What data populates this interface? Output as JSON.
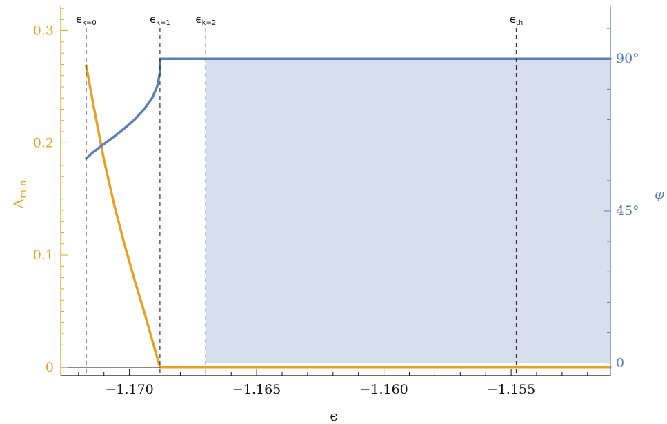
{
  "chart_data": {
    "type": "line",
    "xlabel": "ϵ",
    "ylabel_left": "Δmin",
    "ylabel_left_main": "Δ",
    "ylabel_left_sub": "min",
    "ylabel_right": "φ",
    "xlim": [
      -1.1727,
      -1.1511
    ],
    "ylim_left": [
      -0.0075,
      0.3225
    ],
    "ylim_right_degrees": [
      -3.75,
      105.75
    ],
    "x_ticks": [
      {
        "value": -1.17,
        "label": "−1.170"
      },
      {
        "value": -1.165,
        "label": "−1.165"
      },
      {
        "value": -1.16,
        "label": "−1.160"
      },
      {
        "value": -1.155,
        "label": "−1.155"
      }
    ],
    "left_ticks": [
      {
        "value": 0,
        "label": "0"
      },
      {
        "value": 0.1,
        "label": "0.1"
      },
      {
        "value": 0.2,
        "label": "0.2"
      },
      {
        "value": 0.3,
        "label": "0.3"
      }
    ],
    "right_ticks": [
      {
        "value": 0,
        "label": "0"
      },
      {
        "value": 45,
        "label": "45°"
      },
      {
        "value": 90,
        "label": "90°"
      }
    ],
    "vlines": [
      {
        "x": -1.1717,
        "label_main": "ϵ",
        "label_sub": "k=0"
      },
      {
        "x": -1.1688,
        "label_main": "ϵ",
        "label_sub": "k=1"
      },
      {
        "x": -1.167,
        "label_main": "ϵ",
        "label_sub": "k=2"
      },
      {
        "x": -1.1548,
        "label_main": "ϵ",
        "label_sub": "th"
      }
    ],
    "shaded_region": {
      "x_from": -1.167,
      "x_to": -1.1511,
      "phi_top": 90,
      "color": "#d7dfec"
    },
    "series": [
      {
        "axis": "left",
        "color": "#e8a020",
        "x": [
          -1.1717,
          -1.1714,
          -1.171,
          -1.1706,
          -1.1702,
          -1.1698,
          -1.1694,
          -1.169,
          -1.1688,
          -1.1511
        ],
        "y": [
          0.269,
          0.232,
          0.185,
          0.145,
          0.11,
          0.078,
          0.048,
          0.016,
          0.0,
          0.0
        ]
      },
      {
        "axis": "right",
        "color": "#5a7fb5",
        "x": [
          -1.1717,
          -1.1714,
          -1.171,
          -1.1706,
          -1.1702,
          -1.1698,
          -1.1694,
          -1.1691,
          -1.1689,
          -1.1688,
          -1.1688,
          -1.1511
        ],
        "y": [
          60.5,
          62.5,
          64.8,
          67.0,
          69.4,
          72.0,
          75.3,
          78.5,
          82.0,
          86.0,
          90.0,
          90.0
        ]
      },
      {
        "axis": "left",
        "color": "#111111",
        "x": [
          -1.1727,
          -1.1688
        ],
        "y": [
          0.0,
          0.0
        ]
      }
    ]
  }
}
